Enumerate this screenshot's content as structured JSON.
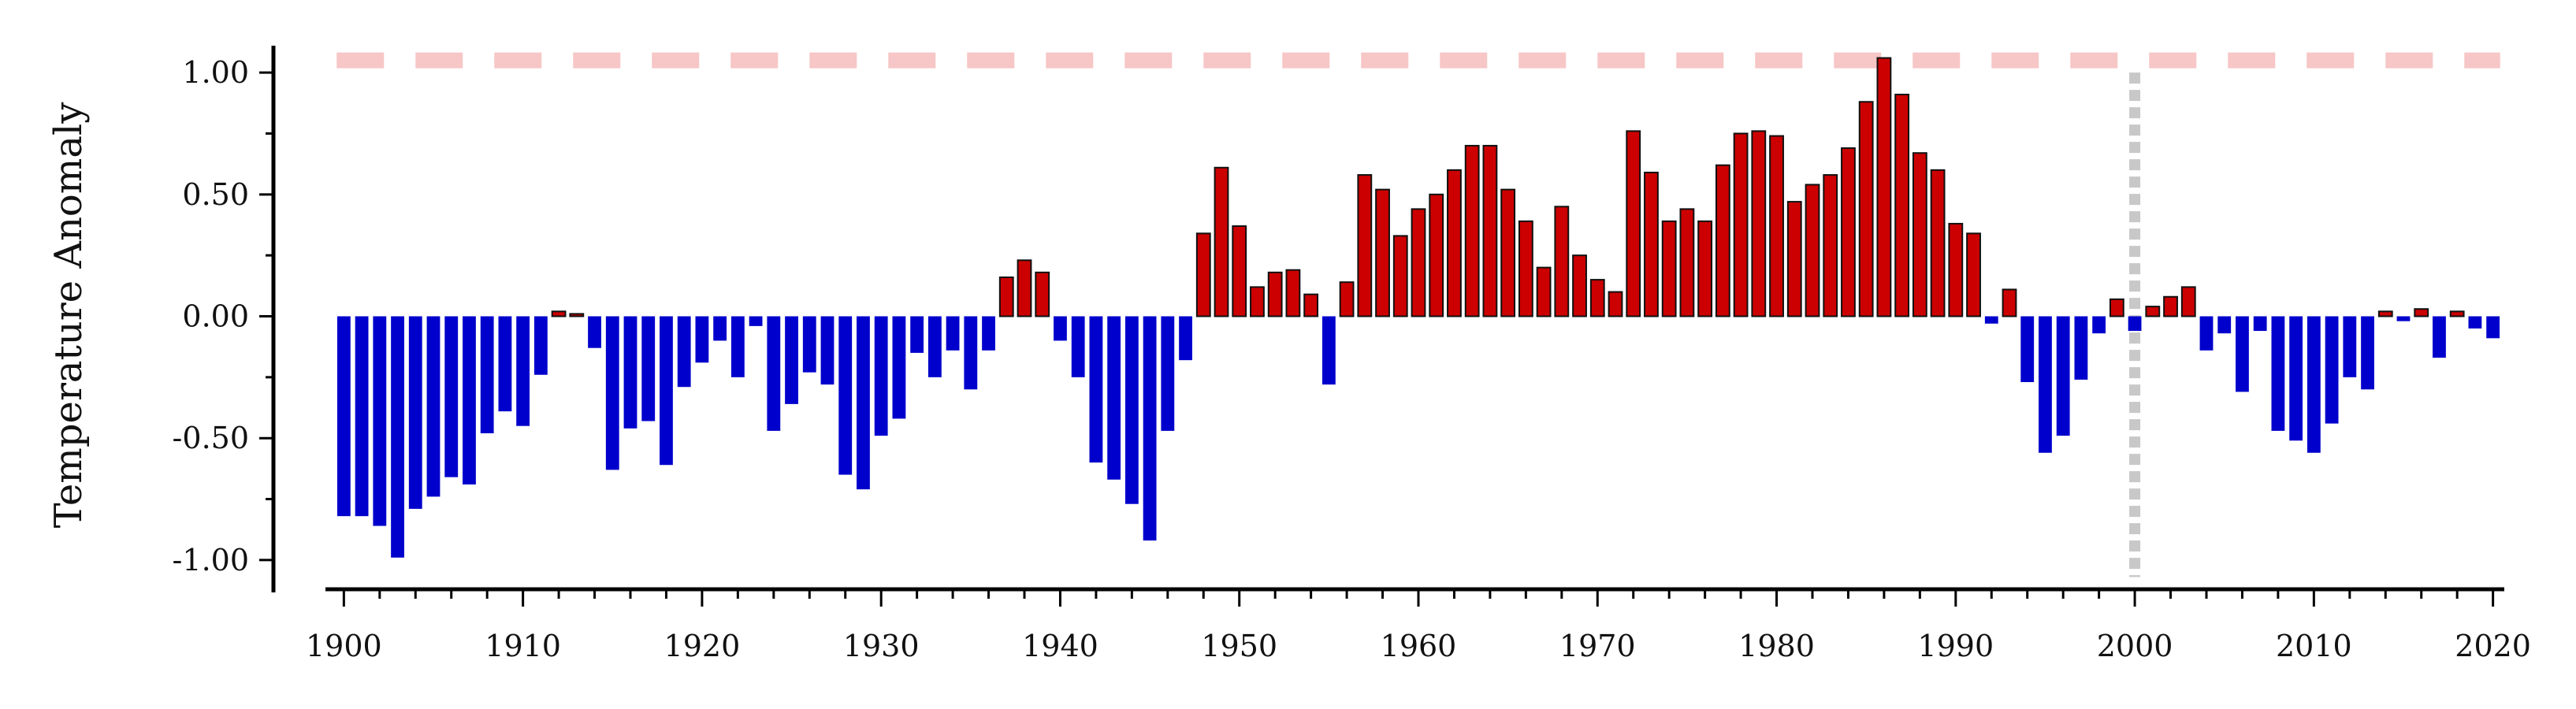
{
  "chart_data": {
    "type": "bar",
    "ylabel": "Temperature Anomaly",
    "xlabel": "",
    "title": "",
    "xlim": [
      1899.5,
      2020.5
    ],
    "ylim": [
      -1.12,
      1.12
    ],
    "x_ticks": [
      1900,
      1910,
      1920,
      1930,
      1940,
      1950,
      1960,
      1970,
      1980,
      1990,
      2000,
      2010,
      2020
    ],
    "x_tick_labels": [
      "1900",
      "1910",
      "1920",
      "1930",
      "1940",
      "1950",
      "1960",
      "1970",
      "1980",
      "1990",
      "2000",
      "2010",
      "2020"
    ],
    "y_ticks": [
      1.0,
      0.5,
      0.0,
      -0.5,
      -1.0
    ],
    "y_tick_labels": [
      "1.00",
      "0.50",
      "0.00",
      "-0.50",
      "-1.00"
    ],
    "grid": false,
    "positive_color": "#cc0000",
    "negative_color": "#0000cc",
    "threshold_line": {
      "y": 1.05,
      "color": "#f7c6c6",
      "style": "dashed"
    },
    "vertical_line": {
      "x": 2000,
      "color": "#c8c8c8",
      "style": "dotted"
    },
    "years": [
      1900,
      1901,
      1902,
      1903,
      1904,
      1905,
      1906,
      1907,
      1908,
      1909,
      1910,
      1911,
      1912,
      1913,
      1914,
      1915,
      1916,
      1917,
      1918,
      1919,
      1920,
      1921,
      1922,
      1923,
      1924,
      1925,
      1926,
      1927,
      1928,
      1929,
      1930,
      1931,
      1932,
      1933,
      1934,
      1935,
      1936,
      1937,
      1938,
      1939,
      1940,
      1941,
      1942,
      1943,
      1944,
      1945,
      1946,
      1947,
      1948,
      1949,
      1950,
      1951,
      1952,
      1953,
      1954,
      1955,
      1956,
      1957,
      1958,
      1959,
      1960,
      1961,
      1962,
      1963,
      1964,
      1965,
      1966,
      1967,
      1968,
      1969,
      1970,
      1971,
      1972,
      1973,
      1974,
      1975,
      1976,
      1977,
      1978,
      1979,
      1980,
      1981,
      1982,
      1983,
      1984,
      1985,
      1986,
      1987,
      1988,
      1989,
      1990,
      1991,
      1992,
      1993,
      1994,
      1995,
      1996,
      1997,
      1998,
      1999,
      2000,
      2001,
      2002,
      2003,
      2004,
      2005,
      2006,
      2007,
      2008,
      2009,
      2010,
      2011,
      2012,
      2013,
      2014,
      2015,
      2016,
      2017,
      2018,
      2019,
      2020
    ],
    "values": [
      -0.82,
      -0.82,
      -0.86,
      -0.99,
      -0.79,
      -0.74,
      -0.66,
      -0.69,
      -0.48,
      -0.39,
      -0.45,
      -0.24,
      0.02,
      0.01,
      -0.13,
      -0.63,
      -0.46,
      -0.43,
      -0.61,
      -0.29,
      -0.19,
      -0.1,
      -0.25,
      -0.04,
      -0.47,
      -0.36,
      -0.23,
      -0.28,
      -0.65,
      -0.71,
      -0.49,
      -0.42,
      -0.15,
      -0.25,
      -0.14,
      -0.3,
      -0.14,
      0.16,
      0.23,
      0.18,
      -0.1,
      -0.25,
      -0.6,
      -0.67,
      -0.77,
      -0.92,
      -0.47,
      -0.18,
      0.34,
      0.61,
      0.37,
      0.12,
      0.18,
      0.19,
      0.09,
      -0.28,
      0.14,
      0.58,
      0.52,
      0.33,
      0.44,
      0.5,
      0.6,
      0.7,
      0.7,
      0.52,
      0.39,
      0.2,
      0.45,
      0.25,
      0.15,
      0.1,
      0.76,
      0.59,
      0.39,
      0.44,
      0.39,
      0.62,
      0.75,
      0.76,
      0.74,
      0.47,
      0.54,
      0.58,
      0.69,
      0.88,
      1.06,
      0.91,
      0.67,
      0.6,
      0.38,
      0.34,
      -0.03,
      0.11,
      -0.27,
      -0.56,
      -0.49,
      -0.26,
      -0.07,
      0.07,
      -0.06,
      0.04,
      0.08,
      0.12,
      -0.14,
      -0.07,
      -0.31,
      -0.06,
      -0.47,
      -0.51,
      -0.56,
      -0.44,
      -0.25,
      -0.3,
      0.02,
      -0.02,
      0.03,
      -0.17,
      0.02,
      -0.05,
      -0.09
    ]
  }
}
